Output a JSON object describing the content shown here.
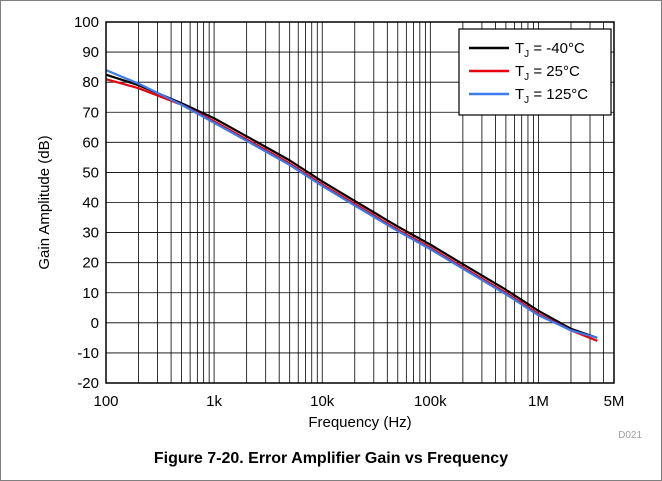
{
  "chart_data": {
    "type": "line",
    "title": "",
    "xlabel": "Frequency (Hz)",
    "ylabel": "Gain Amplitude (dB)",
    "xscale": "log",
    "xlim": [
      100,
      5000000
    ],
    "ylim": [
      -20,
      100
    ],
    "grid": true,
    "legend_position": "top-right",
    "x_ticks": [
      {
        "value": 100,
        "label": "100"
      },
      {
        "value": 1000,
        "label": "1k"
      },
      {
        "value": 10000,
        "label": "10k"
      },
      {
        "value": 100000,
        "label": "100k"
      },
      {
        "value": 1000000,
        "label": "1M"
      },
      {
        "value": 5000000,
        "label": "5M"
      }
    ],
    "y_ticks": [
      -20,
      -10,
      0,
      10,
      20,
      30,
      40,
      50,
      60,
      70,
      80,
      90,
      100
    ],
    "series": [
      {
        "name": "-40°C",
        "color": "#000000",
        "x": [
          100,
          200,
          500,
          1000,
          2000,
          5000,
          10000,
          20000,
          50000,
          100000,
          200000,
          500000,
          1000000,
          2000000,
          3500000
        ],
        "y": [
          82.5,
          79,
          73,
          68,
          62,
          54,
          47,
          40.5,
          32,
          26,
          19.5,
          11,
          4,
          -2,
          -5
        ]
      },
      {
        "name": "25°C",
        "color": "#e8000a",
        "x": [
          100,
          200,
          500,
          1000,
          2000,
          5000,
          10000,
          20000,
          50000,
          100000,
          200000,
          500000,
          1000000,
          2000000,
          3500000
        ],
        "y": [
          81,
          78,
          72.5,
          67,
          61,
          53,
          46,
          39.5,
          31,
          25,
          18.5,
          10,
          3,
          -2.5,
          -6
        ]
      },
      {
        "name": "125°C",
        "color": "#3c78ee",
        "x": [
          100,
          200,
          500,
          1000,
          2000,
          5000,
          10000,
          20000,
          50000,
          100000,
          200000,
          500000,
          1000000,
          2000000,
          3500000
        ],
        "y": [
          84,
          79.5,
          72.5,
          66.5,
          60.5,
          52.5,
          45.5,
          39,
          30.5,
          24.5,
          18,
          9.5,
          2.5,
          -2.5,
          -5
        ]
      }
    ],
    "legend_prefix": "T",
    "legend_subscript": "J",
    "legend_equals": " = ",
    "code": "D021"
  },
  "caption": "Figure 7-20. Error Amplifier Gain vs Frequency"
}
